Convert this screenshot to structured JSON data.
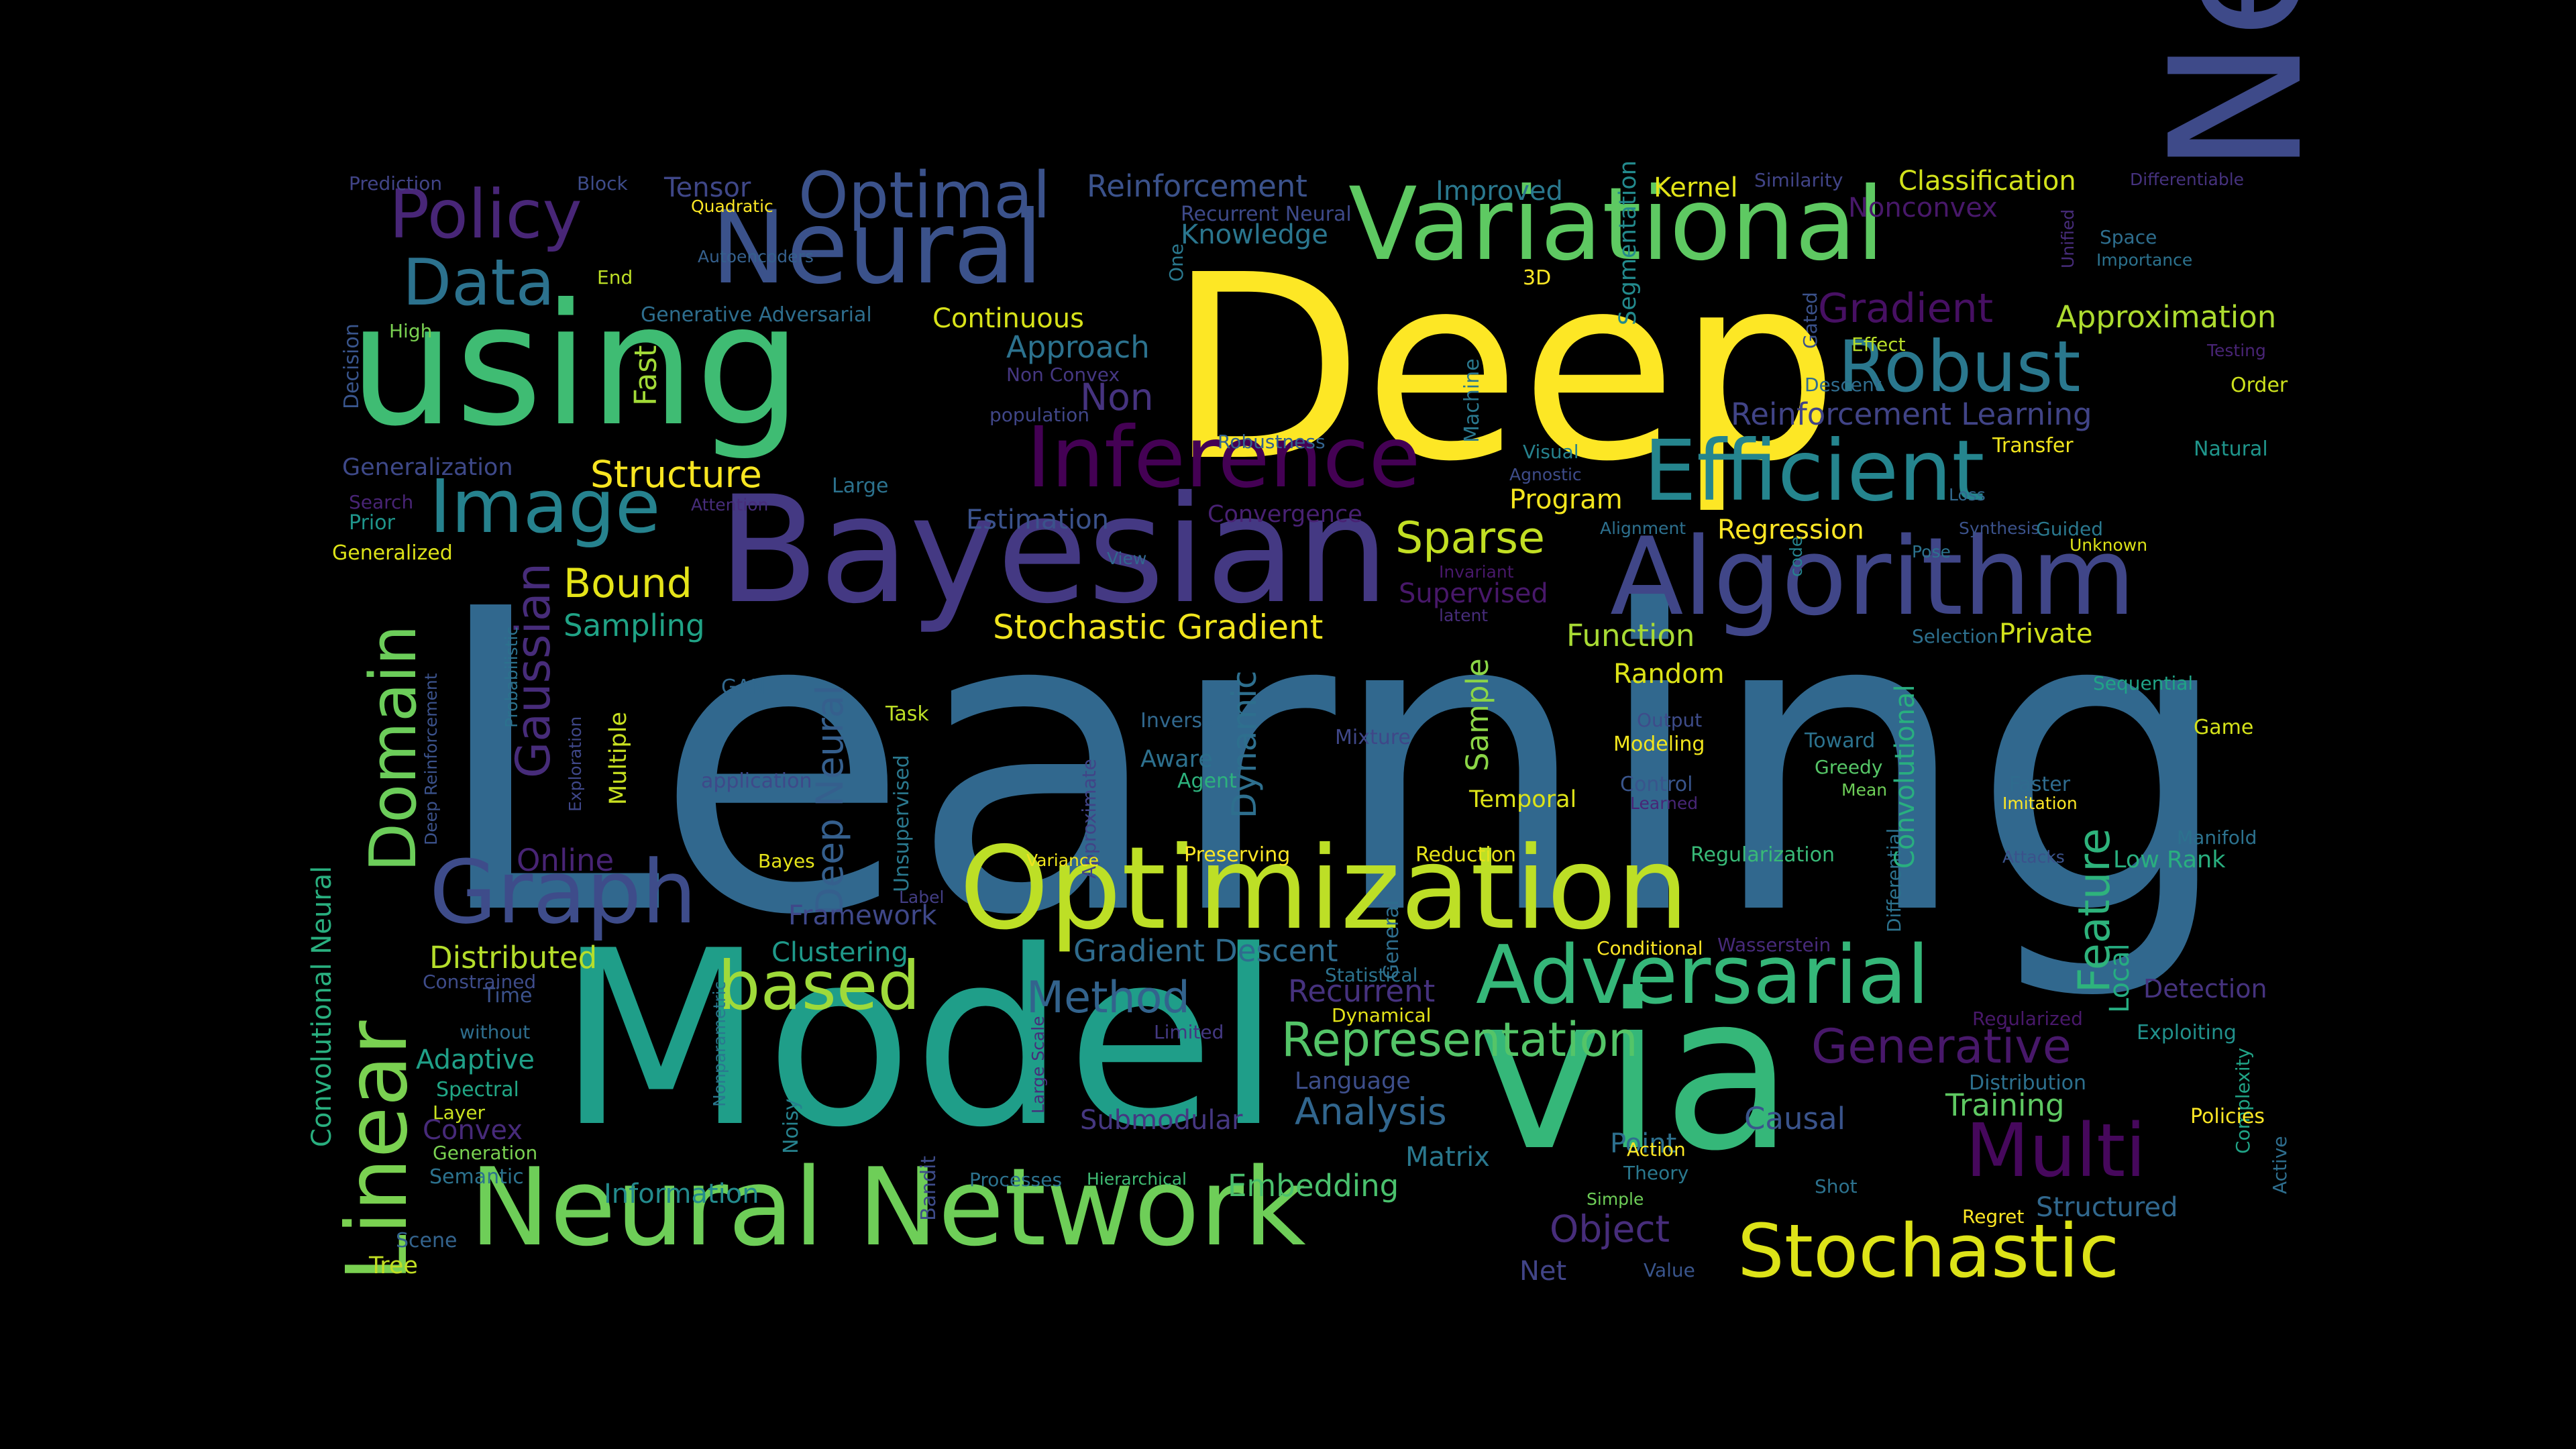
{
  "background_color": "#000000",
  "colormap": "viridis",
  "words": [
    {
      "text": "Learning",
      "color": "#31688e"
    },
    {
      "text": "Deep",
      "color": "#fde725"
    },
    {
      "text": "Model",
      "color": "#1f9e89"
    },
    {
      "text": "via",
      "color": "#35b779"
    },
    {
      "text": "Network",
      "color": "#3e4a89"
    },
    {
      "text": "using",
      "color": "#3fbc73"
    },
    {
      "text": "Bayesian",
      "color": "#443983"
    },
    {
      "text": "Optimization",
      "color": "#bddf26"
    },
    {
      "text": "Neural Network",
      "color": "#6ece58"
    },
    {
      "text": "Algorithm",
      "color": "#404688"
    },
    {
      "text": "Variational",
      "color": "#5ec962"
    },
    {
      "text": "Neural",
      "color": "#3b528b"
    },
    {
      "text": "Efficient",
      "color": "#25858e"
    },
    {
      "text": "Graph",
      "color": "#3e4c8a"
    },
    {
      "text": "Adversarial",
      "color": "#35b779"
    },
    {
      "text": "Stochastic",
      "color": "#dde318"
    },
    {
      "text": "Inference",
      "color": "#440154"
    },
    {
      "text": "Linear",
      "color": "#7ad151"
    },
    {
      "text": "Multi",
      "color": "#46085c"
    },
    {
      "text": "Image",
      "color": "#26828e"
    },
    {
      "text": "Policy",
      "color": "#482677"
    },
    {
      "text": "Optimal",
      "color": "#3b528b"
    },
    {
      "text": "Robust",
      "color": "#2a788e"
    },
    {
      "text": "Data",
      "color": "#2c728e"
    },
    {
      "text": "Domain",
      "color": "#6ccd5a"
    },
    {
      "text": "based",
      "color": "#9fda3a"
    },
    {
      "text": "Generative",
      "color": "#48186a"
    },
    {
      "text": "Representation",
      "color": "#54c568"
    },
    {
      "text": "Gaussian",
      "color": "#472c7a"
    },
    {
      "text": "Deep Neural",
      "color": "#355f8d"
    },
    {
      "text": "Feature",
      "color": "#2eb37c"
    },
    {
      "text": "Method",
      "color": "#33638d"
    },
    {
      "text": "Sparse",
      "color": "#c2df23"
    },
    {
      "text": "Gradient",
      "color": "#471063"
    },
    {
      "text": "Reinforcement Learning",
      "color": "#414487"
    },
    {
      "text": "Reinforcement",
      "color": "#3b528b"
    },
    {
      "text": "Stochastic Gradient",
      "color": "#f1e51d"
    },
    {
      "text": "Structure",
      "color": "#f8e621"
    },
    {
      "text": "Bound",
      "color": "#e5e419"
    },
    {
      "text": "Non",
      "color": "#46337f"
    },
    {
      "text": "Approximation",
      "color": "#addc30"
    },
    {
      "text": "Gradient Descent",
      "color": "#2f6c8e"
    },
    {
      "text": "Analysis",
      "color": "#31668e"
    },
    {
      "text": "Object",
      "color": "#472d7b"
    },
    {
      "text": "Embedding",
      "color": "#4ac16d"
    },
    {
      "text": "Training",
      "color": "#5ec962"
    },
    {
      "text": "Dynamic",
      "color": "#2e6f8e"
    },
    {
      "text": "Causal",
      "color": "#3a548c"
    },
    {
      "text": "Recurrent",
      "color": "#46327e"
    },
    {
      "text": "Convolutional Neural",
      "color": "#29af7f"
    },
    {
      "text": "Sample",
      "color": "#8bd646"
    },
    {
      "text": "Approach",
      "color": "#2c728e"
    },
    {
      "text": "Online",
      "color": "#482475"
    },
    {
      "text": "Distributed",
      "color": "#b5de2b"
    },
    {
      "text": "Clustering",
      "color": "#1f998a"
    },
    {
      "text": "Framework",
      "color": "#3f4889"
    },
    {
      "text": "Knowledge",
      "color": "#2a768e"
    },
    {
      "text": "Nonconvex",
      "color": "#48186a"
    },
    {
      "text": "Classification",
      "color": "#d2e21b"
    },
    {
      "text": "Fast",
      "color": "#a2da37"
    },
    {
      "text": "Sampling",
      "color": "#20a386"
    },
    {
      "text": "Continuous",
      "color": "#d8e219"
    },
    {
      "text": "Estimation",
      "color": "#3b528b"
    },
    {
      "text": "Supervised",
      "color": "#48186a"
    },
    {
      "text": "Function",
      "color": "#a8db34"
    },
    {
      "text": "Random",
      "color": "#dde318"
    },
    {
      "text": "Private",
      "color": "#d0e11c"
    },
    {
      "text": "Program",
      "color": "#f4e61e"
    },
    {
      "text": "Regression",
      "color": "#fde725"
    },
    {
      "text": "Kernel",
      "color": "#e2e418"
    },
    {
      "text": "Improved",
      "color": "#2a788e"
    },
    {
      "text": "Tensor",
      "color": "#3f4788"
    },
    {
      "text": "Adaptive",
      "color": "#1fa088"
    },
    {
      "text": "Convex",
      "color": "#472a7a"
    },
    {
      "text": "Information",
      "color": "#238a8d"
    },
    {
      "text": "Submodular",
      "color": "#453781"
    },
    {
      "text": "Matrix",
      "color": "#2a788e"
    },
    {
      "text": "Point",
      "color": "#2d708e"
    },
    {
      "text": "Structured",
      "color": "#31688e"
    },
    {
      "text": "Net",
      "color": "#414487"
    },
    {
      "text": "Language",
      "color": "#3d4e8a"
    },
    {
      "text": "Multiple",
      "color": "#c8e020"
    },
    {
      "text": "Temporal",
      "color": "#dde318"
    },
    {
      "text": "Convergence",
      "color": "#482173"
    },
    {
      "text": "Low Rank",
      "color": "#29af7f"
    },
    {
      "text": "Local",
      "color": "#26ad81"
    },
    {
      "text": "Detection",
      "color": "#46337f"
    },
    {
      "text": "Exploiting",
      "color": "#21918c"
    },
    {
      "text": "Regularization",
      "color": "#38b977"
    },
    {
      "text": "Reduction",
      "color": "#e7e419"
    },
    {
      "text": "Preserving",
      "color": "#fde725"
    },
    {
      "text": "Mixture",
      "color": "#3f4788"
    },
    {
      "text": "Inverse",
      "color": "#31688e"
    },
    {
      "text": "Aware",
      "color": "#2d708e"
    },
    {
      "text": "Agent",
      "color": "#2db27d"
    },
    {
      "text": "Modeling",
      "color": "#f1e51d"
    },
    {
      "text": "Control",
      "color": "#39558c"
    },
    {
      "text": "Learned",
      "color": "#482677"
    },
    {
      "text": "Toward",
      "color": "#2c728e"
    },
    {
      "text": "Greedy",
      "color": "#56c667"
    },
    {
      "text": "Mean",
      "color": "#6ece58"
    },
    {
      "text": "Faster",
      "color": "#2f6b8e"
    },
    {
      "text": "Imitation",
      "color": "#fde725"
    },
    {
      "text": "Attacks",
      "color": "#3b528b"
    },
    {
      "text": "Manifold",
      "color": "#2c728e"
    },
    {
      "text": "Game",
      "color": "#d5e21a"
    },
    {
      "text": "Sequential",
      "color": "#20a386"
    },
    {
      "text": "Selection",
      "color": "#2d708e"
    },
    {
      "text": "Natural",
      "color": "#1f958b"
    },
    {
      "text": "Transfer",
      "color": "#f1e51d"
    },
    {
      "text": "Order",
      "color": "#cde11d"
    },
    {
      "text": "Descent",
      "color": "#2f6c8e"
    },
    {
      "text": "Testing",
      "color": "#482475"
    },
    {
      "text": "Effect",
      "color": "#b8de29"
    },
    {
      "text": "Space",
      "color": "#2e6e8e"
    },
    {
      "text": "Importance",
      "color": "#2c728e"
    },
    {
      "text": "Similarity",
      "color": "#414487"
    },
    {
      "text": "Differentiable",
      "color": "#46327e"
    },
    {
      "text": "Unified",
      "color": "#472c7a"
    },
    {
      "text": "Gated",
      "color": "#3b528b"
    },
    {
      "text": "Machine",
      "color": "#2a788e"
    },
    {
      "text": "Segmentation",
      "color": "#238a8d"
    },
    {
      "text": "3D",
      "color": "#fde725"
    },
    {
      "text": "Visual",
      "color": "#26828e"
    },
    {
      "text": "Agnostic",
      "color": "#3e4c8a"
    },
    {
      "text": "Alignment",
      "color": "#2d708e"
    },
    {
      "text": "Synthesis",
      "color": "#3b528b"
    },
    {
      "text": "Loss",
      "color": "#31688e"
    },
    {
      "text": "Guided",
      "color": "#2a788e"
    },
    {
      "text": "Unknown",
      "color": "#dde318"
    },
    {
      "text": "Pose",
      "color": "#2c728e"
    },
    {
      "text": "code",
      "color": "#25838e"
    },
    {
      "text": "Invariant",
      "color": "#48186a"
    },
    {
      "text": "latent",
      "color": "#472c7a"
    },
    {
      "text": "Robustness",
      "color": "#33638d"
    },
    {
      "text": "One",
      "color": "#2a788e"
    },
    {
      "text": "Recurrent Neural",
      "color": "#3e4a89"
    },
    {
      "text": "Non Convex",
      "color": "#453781"
    },
    {
      "text": "population",
      "color": "#404688"
    },
    {
      "text": "Large",
      "color": "#2c728e"
    },
    {
      "text": "Attention",
      "color": "#472d7b"
    },
    {
      "text": "View",
      "color": "#31688e"
    },
    {
      "text": "Generative Adversarial",
      "color": "#2e6e8e"
    },
    {
      "text": "Autoencoders",
      "color": "#35608d"
    },
    {
      "text": "Quadratic",
      "color": "#fde725"
    },
    {
      "text": "Block",
      "color": "#3e4c8a"
    },
    {
      "text": "Prediction",
      "color": "#414487"
    },
    {
      "text": "End",
      "color": "#bddf26"
    },
    {
      "text": "Decision",
      "color": "#39558c"
    },
    {
      "text": "High",
      "color": "#7ad151"
    },
    {
      "text": "Generalization",
      "color": "#3e4989"
    },
    {
      "text": "Search",
      "color": "#482475"
    },
    {
      "text": "Prior",
      "color": "#1f958b"
    },
    {
      "text": "Generalized",
      "color": "#dde318"
    },
    {
      "text": "Probabilistic",
      "color": "#2c728e"
    },
    {
      "text": "Exploration",
      "color": "#3f4788"
    },
    {
      "text": "GAN",
      "color": "#31688e"
    },
    {
      "text": "Task",
      "color": "#bddf26"
    },
    {
      "text": "application",
      "color": "#3e4989"
    },
    {
      "text": "Deep Reinforcement",
      "color": "#3b528b"
    },
    {
      "text": "Unsupervised",
      "color": "#2a788e"
    },
    {
      "text": "Approximate",
      "color": "#414487"
    },
    {
      "text": "Variance",
      "color": "#f1e51d"
    },
    {
      "text": "Label",
      "color": "#433e85"
    },
    {
      "text": "Bayes",
      "color": "#e5e419"
    },
    {
      "text": "Time",
      "color": "#3b528b"
    },
    {
      "text": "Constrained",
      "color": "#3e4c8a"
    },
    {
      "text": "without",
      "color": "#2e6e8e"
    },
    {
      "text": "Spectral",
      "color": "#21a685"
    },
    {
      "text": "Layer",
      "color": "#c8e020"
    },
    {
      "text": "Generation",
      "color": "#7ad151"
    },
    {
      "text": "Semantic",
      "color": "#2c728e"
    },
    {
      "text": "Scene",
      "color": "#33638d"
    },
    {
      "text": "Tree",
      "color": "#c2df23"
    },
    {
      "text": "Nonparametric",
      "color": "#2a788e"
    },
    {
      "text": "Noisy",
      "color": "#26828e"
    },
    {
      "text": "Bandit",
      "color": "#3e4c8a"
    },
    {
      "text": "Large Scale",
      "color": "#472c7a"
    },
    {
      "text": "Processes",
      "color": "#2c728e"
    },
    {
      "text": "Hierarchical",
      "color": "#3fbc73"
    },
    {
      "text": "Limited",
      "color": "#443983"
    },
    {
      "text": "General",
      "color": "#2e6e8e"
    },
    {
      "text": "Statistical",
      "color": "#2c728e"
    },
    {
      "text": "Dynamical",
      "color": "#e5e419"
    },
    {
      "text": "Theory",
      "color": "#2a788e"
    },
    {
      "text": "Action",
      "color": "#fde725"
    },
    {
      "text": "Shot",
      "color": "#2c728e"
    },
    {
      "text": "Simple",
      "color": "#6ece58"
    },
    {
      "text": "Value",
      "color": "#39558c"
    },
    {
      "text": "Regret",
      "color": "#fde725"
    },
    {
      "text": "Complexity",
      "color": "#20a386"
    },
    {
      "text": "Active",
      "color": "#2e6e8e"
    },
    {
      "text": "Policies",
      "color": "#fde725"
    },
    {
      "text": "Distribution",
      "color": "#2d708e"
    },
    {
      "text": "Regularized",
      "color": "#48186a"
    },
    {
      "text": "Output",
      "color": "#3e4c8a"
    },
    {
      "text": "Conditional",
      "color": "#fde725"
    },
    {
      "text": "Wasserstein",
      "color": "#472a7a"
    },
    {
      "text": "Differential",
      "color": "#2c728e"
    },
    {
      "text": "Convolutional",
      "color": "#29af7f"
    }
  ]
}
